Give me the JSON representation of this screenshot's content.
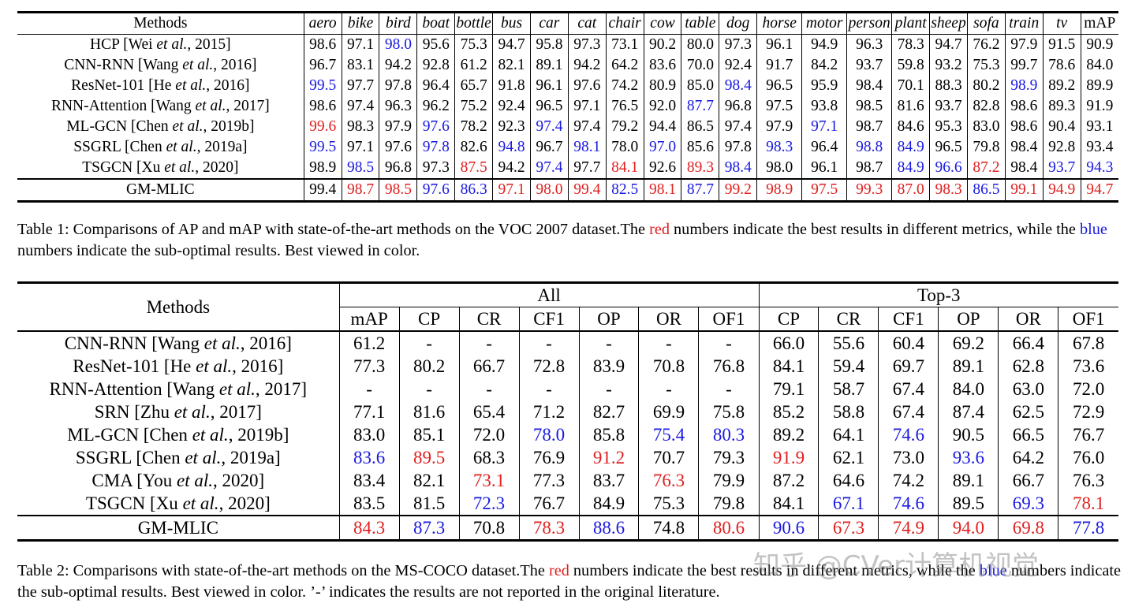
{
  "table1": {
    "methods_header": "Methods",
    "columns": [
      "aero",
      "bike",
      "bird",
      "boat",
      "bottle",
      "bus",
      "car",
      "cat",
      "chair",
      "cow",
      "table",
      "dog",
      "horse",
      "motor",
      "person",
      "plant",
      "sheep",
      "sofa",
      "train",
      "tv",
      "mAP"
    ],
    "rows": [
      {
        "name": "HCP [Wei <i>et al.</i>, 2015]",
        "values": [
          "98.6",
          "97.1",
          "98.0",
          "95.6",
          "75.3",
          "94.7",
          "95.8",
          "97.3",
          "73.1",
          "90.2",
          "80.0",
          "97.3",
          "96.1",
          "94.9",
          "96.3",
          "78.3",
          "94.7",
          "76.2",
          "97.9",
          "91.5",
          "90.9"
        ],
        "colors": [
          "",
          "",
          "blue",
          "",
          "",
          "",
          "",
          "",
          "",
          "",
          "",
          "",
          "",
          "",
          "",
          "",
          "",
          "",
          "",
          "",
          ""
        ]
      },
      {
        "name": "CNN-RNN [Wang <i>et al.</i>, 2016]",
        "values": [
          "96.7",
          "83.1",
          "94.2",
          "92.8",
          "61.2",
          "82.1",
          "89.1",
          "94.2",
          "64.2",
          "83.6",
          "70.0",
          "92.4",
          "91.7",
          "84.2",
          "93.7",
          "59.8",
          "93.2",
          "75.3",
          "99.7",
          "78.6",
          "84.0"
        ],
        "colors": [
          "",
          "",
          "",
          "",
          "",
          "",
          "",
          "",
          "",
          "",
          "",
          "",
          "",
          "",
          "",
          "",
          "",
          "",
          "",
          "",
          ""
        ]
      },
      {
        "name": "ResNet-101 [He <i>et al.</i>, 2016]",
        "values": [
          "99.5",
          "97.7",
          "97.8",
          "96.4",
          "65.7",
          "91.8",
          "96.1",
          "97.6",
          "74.2",
          "80.9",
          "85.0",
          "98.4",
          "96.5",
          "95.9",
          "98.4",
          "70.1",
          "88.3",
          "80.2",
          "98.9",
          "89.2",
          "89.9"
        ],
        "colors": [
          "blue",
          "",
          "",
          "",
          "",
          "",
          "",
          "",
          "",
          "",
          "",
          "blue",
          "",
          "",
          "",
          "",
          "",
          "",
          "blue",
          "",
          ""
        ]
      },
      {
        "name": "RNN-Attention [Wang <i>et al.</i>, 2017]",
        "values": [
          "98.6",
          "97.4",
          "96.3",
          "96.2",
          "75.2",
          "92.4",
          "96.5",
          "97.1",
          "76.5",
          "92.0",
          "87.7",
          "96.8",
          "97.5",
          "93.8",
          "98.5",
          "81.6",
          "93.7",
          "82.8",
          "98.6",
          "89.3",
          "91.9"
        ],
        "colors": [
          "",
          "",
          "",
          "",
          "",
          "",
          "",
          "",
          "",
          "",
          "blue",
          "",
          "",
          "",
          "",
          "",
          "",
          "",
          "",
          "",
          ""
        ]
      },
      {
        "name": "ML-GCN [Chen <i>et al.</i>, 2019b]",
        "values": [
          "99.6",
          "98.3",
          "97.9",
          "97.6",
          "78.2",
          "92.3",
          "97.4",
          "97.4",
          "79.2",
          "94.4",
          "86.5",
          "97.4",
          "97.9",
          "97.1",
          "98.7",
          "84.6",
          "95.3",
          "83.0",
          "98.6",
          "90.4",
          "93.1"
        ],
        "colors": [
          "red",
          "",
          "",
          "blue",
          "",
          "",
          "blue",
          "",
          "",
          "",
          "",
          "",
          "",
          "blue",
          "",
          "",
          "",
          "",
          "",
          "",
          ""
        ]
      },
      {
        "name": "SSGRL [Chen <i>et al.</i>, 2019a]",
        "values": [
          "99.5",
          "97.1",
          "97.6",
          "97.8",
          "82.6",
          "94.8",
          "96.7",
          "98.1",
          "78.0",
          "97.0",
          "85.6",
          "97.8",
          "98.3",
          "96.4",
          "98.8",
          "84.9",
          "96.5",
          "79.8",
          "98.4",
          "92.8",
          "93.4"
        ],
        "colors": [
          "blue",
          "",
          "",
          "blue",
          "",
          "blue",
          "",
          "blue",
          "",
          "blue",
          "",
          "",
          "blue",
          "",
          "blue",
          "blue",
          "",
          "",
          "",
          "",
          ""
        ]
      },
      {
        "name": "TSGCN [Xu <i>et al.</i>, 2020]",
        "values": [
          "98.9",
          "98.5",
          "96.8",
          "97.3",
          "87.5",
          "94.2",
          "97.4",
          "97.7",
          "84.1",
          "92.6",
          "89.3",
          "98.4",
          "98.0",
          "96.1",
          "98.7",
          "84.9",
          "96.6",
          "87.2",
          "98.4",
          "93.7",
          "94.3"
        ],
        "colors": [
          "",
          "blue",
          "",
          "",
          "red",
          "",
          "blue",
          "",
          "red",
          "",
          "red",
          "blue",
          "",
          "",
          "",
          "blue",
          "blue",
          "red",
          "",
          "blue",
          "blue"
        ]
      },
      {
        "name": "GM-MLIC",
        "values": [
          "99.4",
          "98.7",
          "98.5",
          "97.6",
          "86.3",
          "97.1",
          "98.0",
          "99.4",
          "82.5",
          "98.1",
          "87.7",
          "99.2",
          "98.9",
          "97.5",
          "99.3",
          "87.0",
          "98.3",
          "86.5",
          "99.1",
          "94.9",
          "94.7"
        ],
        "colors": [
          "",
          "red",
          "red",
          "blue",
          "blue",
          "red",
          "red",
          "red",
          "blue",
          "red",
          "blue",
          "red",
          "red",
          "red",
          "red",
          "red",
          "red",
          "blue",
          "red",
          "red",
          "red"
        ],
        "ours": true
      }
    ],
    "caption": "Table 1: Comparisons of AP and mAP with state-of-the-art methods on the VOC 2007 dataset.The <span class=\"red\">red</span> numbers indicate the best results in different metrics, while the <span class=\"blue\">blue</span> numbers indicate the sub-optimal results. Best viewed in color."
  },
  "table2": {
    "methods_header": "Methods",
    "group_all": "All",
    "group_top3": "Top-3",
    "all_columns": [
      "mAP",
      "CP",
      "CR",
      "CF1",
      "OP",
      "OR",
      "OF1"
    ],
    "top3_columns": [
      "CP",
      "CR",
      "CF1",
      "OP",
      "OR",
      "OF1"
    ],
    "rows": [
      {
        "name": "CNN-RNN [Wang <i>et al.</i>, 2016]",
        "values": [
          "61.2",
          "-",
          "-",
          "-",
          "-",
          "-",
          "-",
          "66.0",
          "55.6",
          "60.4",
          "69.2",
          "66.4",
          "67.8"
        ],
        "colors": [
          "",
          "",
          "",
          "",
          "",
          "",
          "",
          "",
          "",
          "",
          "",
          "",
          ""
        ]
      },
      {
        "name": "ResNet-101 [He <i>et al.</i>, 2016]",
        "values": [
          "77.3",
          "80.2",
          "66.7",
          "72.8",
          "83.9",
          "70.8",
          "76.8",
          "84.1",
          "59.4",
          "69.7",
          "89.1",
          "62.8",
          "73.6"
        ],
        "colors": [
          "",
          "",
          "",
          "",
          "",
          "",
          "",
          "",
          "",
          "",
          "",
          "",
          ""
        ]
      },
      {
        "name": "RNN-Attention [Wang <i>et al.</i>, 2017]",
        "values": [
          "-",
          "-",
          "-",
          "-",
          "-",
          "-",
          "-",
          "79.1",
          "58.7",
          "67.4",
          "84.0",
          "63.0",
          "72.0"
        ],
        "colors": [
          "",
          "",
          "",
          "",
          "",
          "",
          "",
          "",
          "",
          "",
          "",
          "",
          ""
        ]
      },
      {
        "name": "SRN [Zhu <i>et al.</i>, 2017]",
        "values": [
          "77.1",
          "81.6",
          "65.4",
          "71.2",
          "82.7",
          "69.9",
          "75.8",
          "85.2",
          "58.8",
          "67.4",
          "87.4",
          "62.5",
          "72.9"
        ],
        "colors": [
          "",
          "",
          "",
          "",
          "",
          "",
          "",
          "",
          "",
          "",
          "",
          "",
          ""
        ]
      },
      {
        "name": "ML-GCN [Chen <i>et al.</i>, 2019b]",
        "values": [
          "83.0",
          "85.1",
          "72.0",
          "78.0",
          "85.8",
          "75.4",
          "80.3",
          "89.2",
          "64.1",
          "74.6",
          "90.5",
          "66.5",
          "76.7"
        ],
        "colors": [
          "",
          "",
          "",
          "blue",
          "",
          "blue",
          "blue",
          "",
          "",
          "blue",
          "",
          "",
          ""
        ]
      },
      {
        "name": "SSGRL [Chen <i>et al.</i>, 2019a]",
        "values": [
          "83.6",
          "89.5",
          "68.3",
          "76.9",
          "91.2",
          "70.7",
          "79.3",
          "91.9",
          "62.1",
          "73.0",
          "93.6",
          "64.2",
          "76.0"
        ],
        "colors": [
          "blue",
          "red",
          "",
          "",
          "red",
          "",
          "",
          "red",
          "",
          "",
          "blue",
          "",
          ""
        ]
      },
      {
        "name": "CMA [You <i>et al.</i>, 2020]",
        "values": [
          "83.4",
          "82.1",
          "73.1",
          "77.3",
          "83.7",
          "76.3",
          "79.9",
          "87.2",
          "64.6",
          "74.2",
          "89.1",
          "66.7",
          "76.3"
        ],
        "colors": [
          "",
          "",
          "red",
          "",
          "",
          "red",
          "",
          "",
          "",
          "",
          "",
          "",
          ""
        ]
      },
      {
        "name": "TSGCN [Xu <i>et al.</i>, 2020]",
        "values": [
          "83.5",
          "81.5",
          "72.3",
          "76.7",
          "84.9",
          "75.3",
          "79.8",
          "84.1",
          "67.1",
          "74.6",
          "89.5",
          "69.3",
          "78.1"
        ],
        "colors": [
          "",
          "",
          "blue",
          "",
          "",
          "",
          "",
          "",
          "blue",
          "blue",
          "",
          "blue",
          "red"
        ]
      },
      {
        "name": "GM-MLIC",
        "values": [
          "84.3",
          "87.3",
          "70.8",
          "78.3",
          "88.6",
          "74.8",
          "80.6",
          "90.6",
          "67.3",
          "74.9",
          "94.0",
          "69.8",
          "77.8"
        ],
        "colors": [
          "red",
          "blue",
          "",
          "red",
          "blue",
          "",
          "red",
          "blue",
          "red",
          "red",
          "red",
          "red",
          "blue"
        ],
        "ours": true
      }
    ],
    "caption": "Table 2: Comparisons with state-of-the-art methods on the MS-COCO dataset.The <span class=\"red\">red</span> numbers indicate the best results in different metrics, while the <span class=\"blue\">blue</span> numbers indicate the sub-optimal results. Best viewed in color. ’-’ indicates the results are not reported in the original literature."
  },
  "watermark": "知乎 @CVer计算机视觉"
}
